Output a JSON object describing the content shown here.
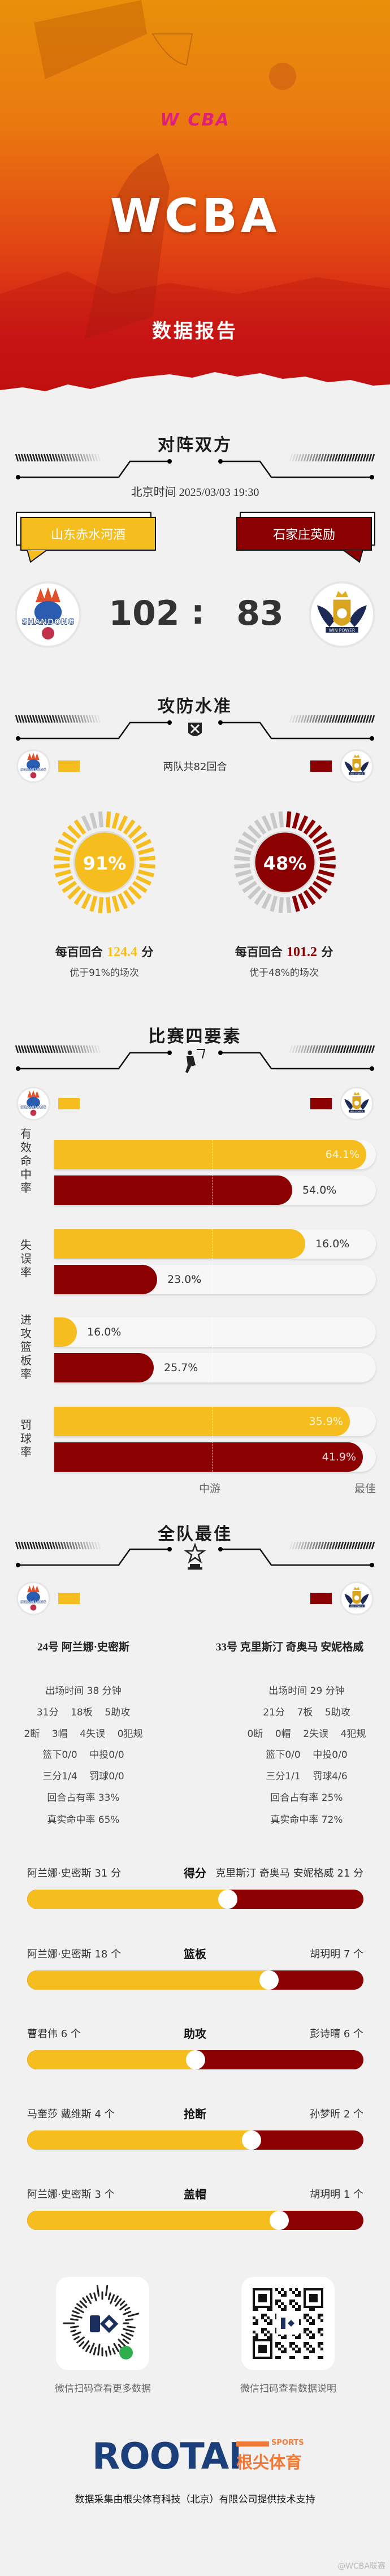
{
  "header": {
    "league_logo": "WCBA",
    "title": "WCBA",
    "subtitle": "数据报告"
  },
  "colors": {
    "home": "#F5BE1E",
    "away": "#8B0000"
  },
  "matchup": {
    "title": "对阵双方",
    "datetime": "北京时间 2025/03/03 19:30",
    "home": {
      "name": "山东赤水河酒",
      "score": "102",
      "logo_text": "SHANDONG"
    },
    "away": {
      "name": "石家庄英励",
      "score": "83",
      "logo_text": "WIN POWER"
    },
    "separator": ":"
  },
  "efficiency": {
    "title": "攻防水准",
    "icon": "shield-swords-icon",
    "possessions": "两队共82回合",
    "home": {
      "percent_label": "91%",
      "percentile": 91,
      "prefix": "每百回合",
      "value": "124.4",
      "suffix": "分",
      "beat": "优于91%的场次"
    },
    "away": {
      "percent_label": "48%",
      "percentile": 48,
      "prefix": "每百回合",
      "value": "101.2",
      "suffix": "分",
      "beat": "优于48%的场次"
    }
  },
  "four_factors": {
    "title": "比赛四要素",
    "icon": "dunk-icon",
    "axis": {
      "mid": "中游",
      "best": "最佳"
    },
    "rows": [
      {
        "label": "有效命中率",
        "home": {
          "value": "64.1%",
          "rank_fraction": 0.97
        },
        "away": {
          "value": "54.0%",
          "rank_fraction": 0.74
        }
      },
      {
        "label": "失误率",
        "home": {
          "value": "16.0%",
          "rank_fraction": 0.78
        },
        "away": {
          "value": "23.0%",
          "rank_fraction": 0.32
        }
      },
      {
        "label": "进攻篮板率",
        "home": {
          "value": "16.0%",
          "rank_fraction": 0.07
        },
        "away": {
          "value": "25.7%",
          "rank_fraction": 0.31
        }
      },
      {
        "label": "罚球率",
        "home": {
          "value": "35.9%",
          "rank_fraction": 0.92
        },
        "away": {
          "value": "41.9%",
          "rank_fraction": 0.96
        }
      }
    ]
  },
  "best": {
    "title": "全队最佳",
    "icon": "trophy-star-icon",
    "home_player": {
      "name": "24号 阿兰娜·史密斯",
      "stats": [
        "出场时间 38 分钟",
        "31分    18板    5助攻",
        "2断    3帽    4失误    0犯规",
        "篮下0/0    中投0/0",
        "三分1/4    罚球0/0",
        "回合占有率 33%",
        "真实命中率 65%"
      ]
    },
    "away_player": {
      "name": "33号 克里斯汀 奇奥马 安妮格威",
      "stats": [
        "出场时间 29 分钟",
        "21分    7板    5助攻",
        "0断    0帽    2失误    4犯规",
        "篮下0/0    中投0/0",
        "三分1/1    罚球4/6",
        "回合占有率 25%",
        "真实命中率 72%"
      ]
    },
    "leaders": [
      {
        "category": "得分",
        "home": "阿兰娜·史密斯 31 分",
        "away": "克里斯汀 奇奥马 安妮格威 21 分",
        "home_value": 31,
        "away_value": 21
      },
      {
        "category": "篮板",
        "home": "阿兰娜·史密斯 18 个",
        "away": "胡玥明 7 个",
        "home_value": 18,
        "away_value": 7
      },
      {
        "category": "助攻",
        "home": "曹君伟 6 个",
        "away": "彭诗晴 6 个",
        "home_value": 6,
        "away_value": 6
      },
      {
        "category": "抢断",
        "home": "马奎莎 戴维斯 4 个",
        "away": "孙梦昕 2 个",
        "home_value": 4,
        "away_value": 2
      },
      {
        "category": "盖帽",
        "home": "阿兰娜·史密斯 3 个",
        "away": "胡玥明 1 个",
        "home_value": 3,
        "away_value": 1
      }
    ]
  },
  "footer": {
    "qr_left_caption": "微信扫码查看更多数据",
    "qr_right_caption": "微信扫码查看数据说明",
    "brand": "ROOTAI",
    "brand_sub": "SPORTS",
    "brand_cn": "根尖体育",
    "credit": "数据采集由根尖体育科技（北京）有限公司提供技术支持",
    "watermark": "@WCBA联赛"
  }
}
